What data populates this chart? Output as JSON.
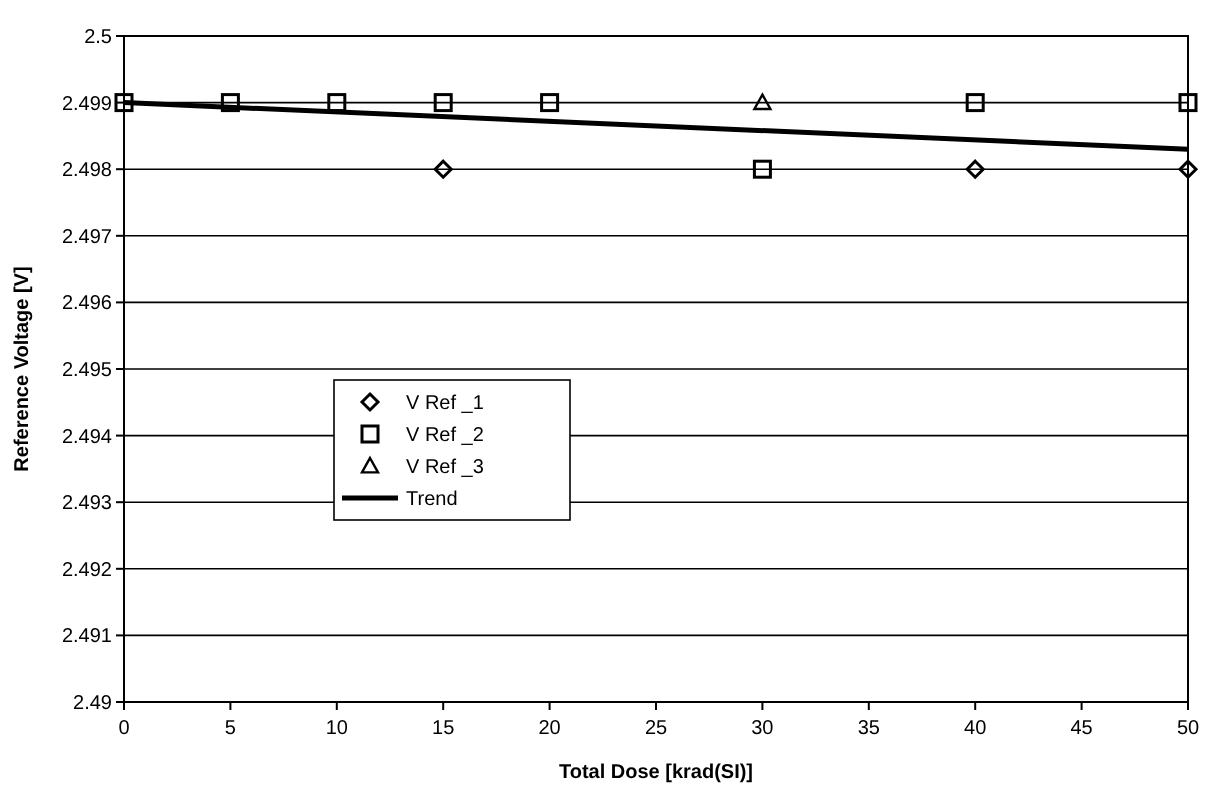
{
  "chart_data": {
    "type": "scatter",
    "xlabel": "Total Dose [krad(SI)]",
    "ylabel": "Reference Voltage [V]",
    "x": [
      0,
      5,
      10,
      15,
      20,
      30,
      40,
      50
    ],
    "xlim": [
      0,
      50
    ],
    "xticks": [
      0,
      5,
      10,
      15,
      20,
      25,
      30,
      35,
      40,
      45,
      50
    ],
    "ylim": [
      2.49,
      2.5
    ],
    "yticks": [
      2.49,
      2.491,
      2.492,
      2.493,
      2.494,
      2.495,
      2.496,
      2.497,
      2.498,
      2.499,
      2.5
    ],
    "grid": "y",
    "legend": "left",
    "series": [
      {
        "name": "V Ref _1",
        "color": "#000000",
        "marker": "diamond",
        "values": [
          null,
          null,
          null,
          2.498,
          null,
          null,
          2.498,
          2.498
        ]
      },
      {
        "name": "V Ref _2",
        "color": "#000000",
        "marker": "square",
        "values": [
          2.499,
          2.499,
          2.499,
          2.499,
          2.499,
          2.498,
          2.499,
          2.499
        ]
      },
      {
        "name": "V Ref _3",
        "color": "#000000",
        "marker": "triangle",
        "values": [
          null,
          null,
          null,
          null,
          null,
          2.499,
          null,
          null
        ]
      },
      {
        "name": "Trend",
        "color": "#000000",
        "type": "line",
        "marker": "none",
        "x": [
          0,
          50
        ],
        "values": [
          2.499,
          2.4983
        ]
      }
    ]
  }
}
